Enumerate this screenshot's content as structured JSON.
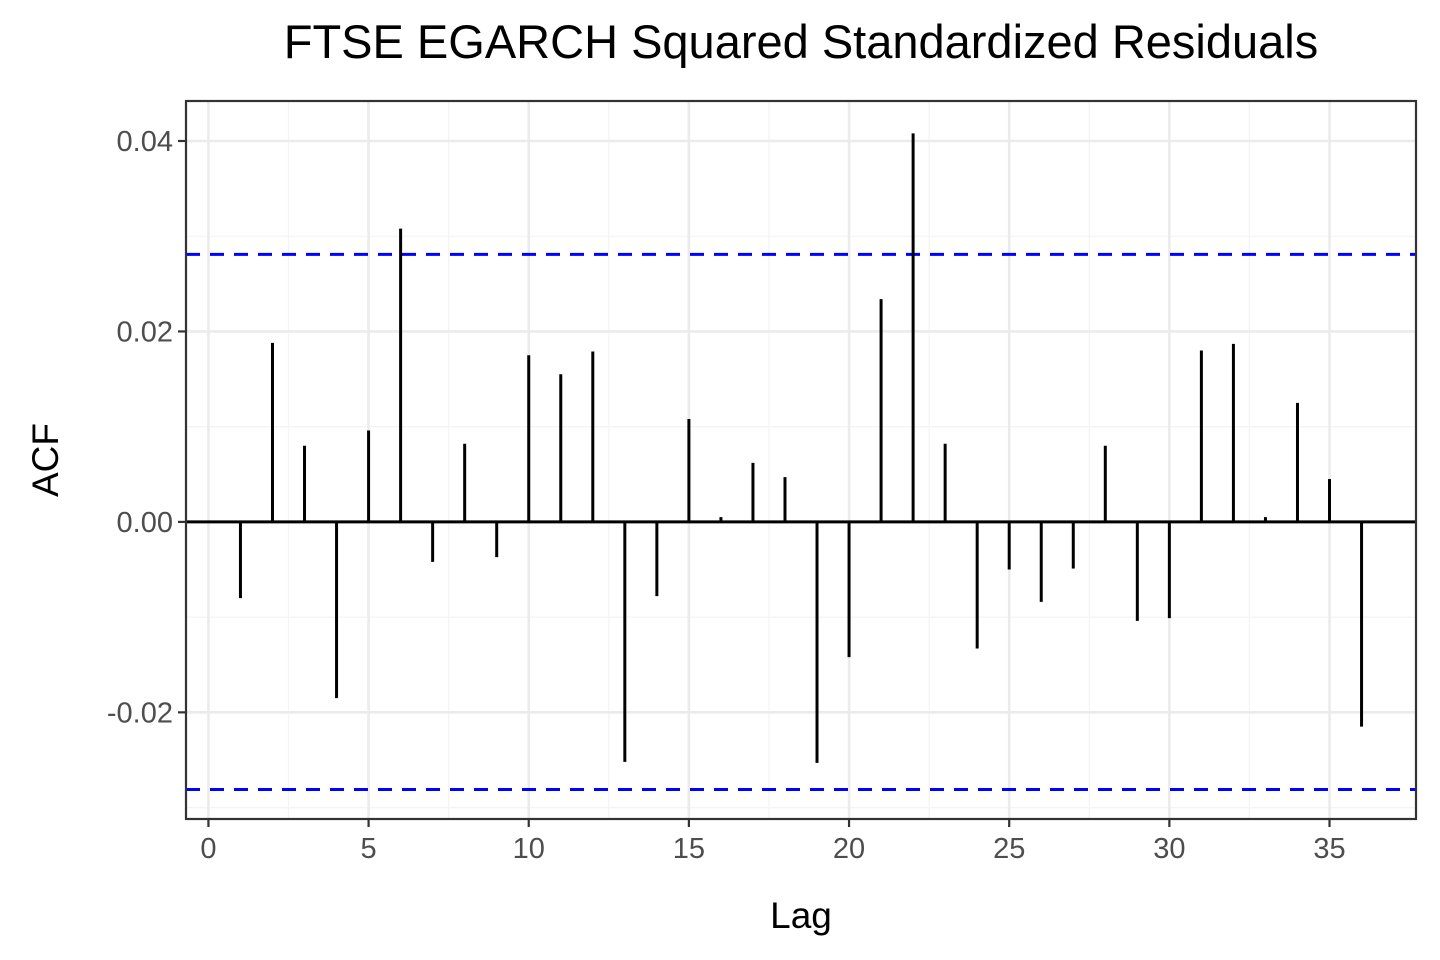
{
  "chart_data": {
    "type": "bar",
    "title": "FTSE EGARCH Squared Standardized Residuals",
    "xlabel": "Lag",
    "ylabel": "ACF",
    "xlim": [
      -0.7,
      37.7
    ],
    "ylim": [
      -0.0312,
      0.0442
    ],
    "x_ticks": [
      0,
      5,
      10,
      15,
      20,
      25,
      30,
      35
    ],
    "x_tick_labels": [
      "0",
      "5",
      "10",
      "15",
      "20",
      "25",
      "30",
      "35"
    ],
    "y_ticks": [
      -0.02,
      0.0,
      0.02,
      0.04
    ],
    "y_tick_labels": [
      "-0.02",
      "0.00",
      "0.02",
      "0.04"
    ],
    "grid": true,
    "confidence_bounds": [
      0.0281,
      -0.0281
    ],
    "confidence_color": "#0000ff",
    "lags": [
      1,
      2,
      3,
      4,
      5,
      6,
      7,
      8,
      9,
      10,
      11,
      12,
      13,
      14,
      15,
      16,
      17,
      18,
      19,
      20,
      21,
      22,
      23,
      24,
      25,
      26,
      27,
      28,
      29,
      30,
      31,
      32,
      33,
      34,
      35,
      36
    ],
    "values": [
      -0.008,
      0.0188,
      0.008,
      -0.0185,
      0.0096,
      0.0308,
      -0.0042,
      0.0082,
      -0.0037,
      0.0175,
      0.0155,
      0.0179,
      -0.0252,
      -0.0078,
      0.0108,
      0.0005,
      0.0062,
      0.0047,
      -0.0253,
      -0.0142,
      0.0234,
      0.0408,
      0.0082,
      -0.0133,
      -0.005,
      -0.0084,
      -0.0049,
      0.008,
      -0.0104,
      -0.0101,
      0.018,
      0.0187,
      0.0005,
      0.0125,
      0.0045,
      -0.0215
    ]
  }
}
